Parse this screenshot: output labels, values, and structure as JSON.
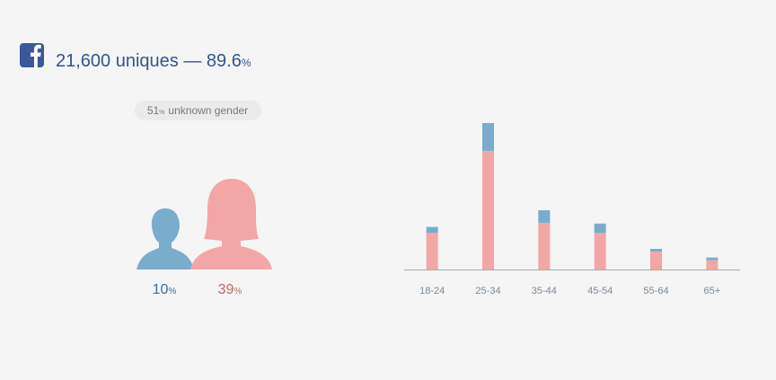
{
  "header": {
    "text": "21,600 uniques — 89.6",
    "unit": "%"
  },
  "gender": {
    "unknown": 51,
    "unknown_label": "unknown gender",
    "male": 10,
    "female": 39,
    "unit": "%"
  },
  "chart_data": {
    "type": "bar",
    "stacked": true,
    "categories": [
      "18-24",
      "25-34",
      "35-44",
      "45-54",
      "55-64",
      "65+"
    ],
    "series": [
      {
        "name": "Female",
        "color": "#f2a7a6",
        "values": [
          5.5,
          17.8,
          7.0,
          5.5,
          2.7,
          1.4
        ]
      },
      {
        "name": "Male",
        "color": "#79adcb",
        "values": [
          0.9,
          4.2,
          1.9,
          1.4,
          0.4,
          0.4
        ]
      }
    ],
    "ylim": [
      0,
      22
    ]
  }
}
